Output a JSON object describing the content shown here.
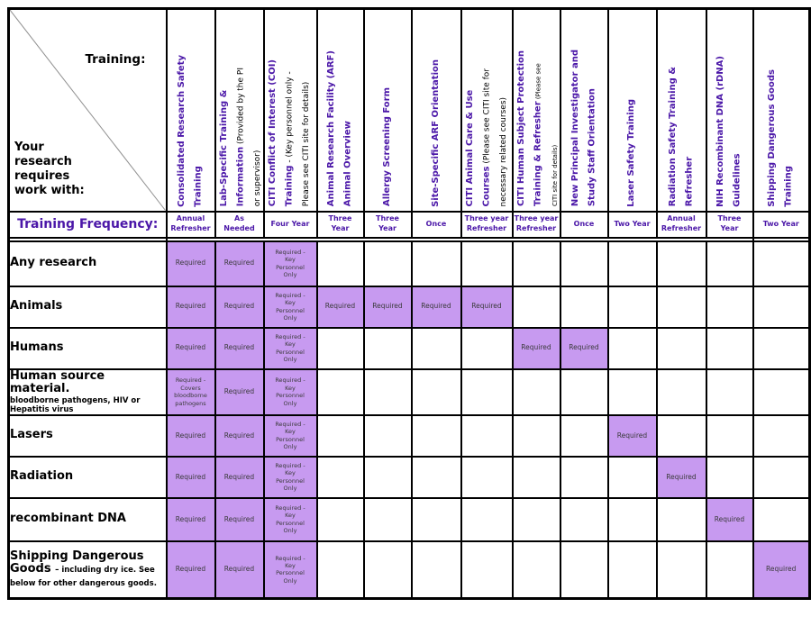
{
  "corner": {
    "training_label": "Training:",
    "your_research_label": "Your\nresearch\nrequires\nwork with:"
  },
  "frequency_label": "Training Frequency:",
  "columns": [
    {
      "title": "Consolidated Research Safety\nTraining",
      "note": "",
      "small": "",
      "frequency": "Annual\nRefresher"
    },
    {
      "title": "Lab-Specific Training &\nInformation",
      "note": " (Provided by the PI\nor supervisor)",
      "small": "",
      "frequency": "As\nNeeded"
    },
    {
      "title": "CITI Conflict of Interest (COI)\nTraining",
      "note": " - (Key personnel only -\nPlease see CITI site for details)",
      "small": "",
      "frequency": "Four Year"
    },
    {
      "title": "Animal Research Facility (ARF)\nAnimal Overview",
      "note": "",
      "small": "",
      "frequency": "Three\nYear"
    },
    {
      "title": "Allergy Screening Form",
      "note": "",
      "small": "",
      "frequency": "Three\nYear"
    },
    {
      "title": "Site-Specific ARF Orientation",
      "note": "",
      "small": "",
      "frequency": "Once"
    },
    {
      "title": "CITI Animal Care & Use\nCourses",
      "note": " (Please see CITI site for\nnecessary related courses)",
      "small": "",
      "frequency": "Three year\nRefresher"
    },
    {
      "title": "CITI Human Subject Protection\nTraining & Refresher",
      "note": "",
      "small": " (Please see\nCITI site for details)",
      "frequency": "Three year\nRefresher"
    },
    {
      "title": "New Principal Investigator and\nStudy Staff Orientation",
      "note": "",
      "small": "",
      "frequency": "Once"
    },
    {
      "title": "Laser Safety Training",
      "note": "",
      "small": "",
      "frequency": "Two Year"
    },
    {
      "title": "Radiation Safety Training &\nRefresher",
      "note": "",
      "small": "",
      "frequency": "Annual\nRefresher"
    },
    {
      "title": "NIH Recombinant DNA (rDNA)\nGuidelines",
      "note": "",
      "small": "",
      "frequency": "Three\nYear"
    },
    {
      "title": "Shipping Dangerous Goods\nTraining",
      "note": "",
      "small": "",
      "frequency": "Two Year"
    }
  ],
  "rows": [
    {
      "label": "Any research",
      "sublabel": "",
      "sublabel_display": "none",
      "cells": [
        "Required",
        "Required",
        "Required -\nKey\nPersonnel\nOnly",
        "",
        "",
        "",
        "",
        "",
        "",
        "",
        "",
        "",
        ""
      ]
    },
    {
      "label": "Animals",
      "sublabel": "",
      "sublabel_display": "none",
      "cells": [
        "Required",
        "Required",
        "Required -\nKey\nPersonnel\nOnly",
        "Required",
        "Required",
        "Required",
        "Required",
        "",
        "",
        "",
        "",
        "",
        ""
      ]
    },
    {
      "label": "Humans",
      "sublabel": "",
      "sublabel_display": "none",
      "cells": [
        "Required",
        "Required",
        "Required -\nKey\nPersonnel\nOnly",
        "",
        "",
        "",
        "",
        "Required",
        "Required",
        "",
        "",
        "",
        ""
      ]
    },
    {
      "label": "Human source material.",
      "sublabel": "bloodborne pathogens, HIV or\nHepatitis virus",
      "sublabel_display": "block",
      "cells": [
        "Required -\nCovers\nbloodborne\npathogens",
        "Required",
        "Required -\nKey\nPersonnel\nOnly",
        "",
        "",
        "",
        "",
        "",
        "",
        "",
        "",
        "",
        ""
      ]
    },
    {
      "label": "Lasers",
      "sublabel": "",
      "sublabel_display": "none",
      "cells": [
        "Required",
        "Required",
        "Required -\nKey\nPersonnel\nOnly",
        "",
        "",
        "",
        "",
        "",
        "",
        "Required",
        "",
        "",
        ""
      ]
    },
    {
      "label": "Radiation",
      "sublabel": "",
      "sublabel_display": "none",
      "cells": [
        "Required",
        "Required",
        "Required -\nKey\nPersonnel\nOnly",
        "",
        "",
        "",
        "",
        "",
        "",
        "",
        "Required",
        "",
        ""
      ]
    },
    {
      "label": "recombinant DNA",
      "sublabel": "",
      "sublabel_display": "none",
      "cells": [
        "Required",
        "Required",
        "Required -\nKey\nPersonnel\nOnly",
        "",
        "",
        "",
        "",
        "",
        "",
        "",
        "",
        "Required",
        ""
      ]
    },
    {
      "label": "Shipping Dangerous\nGoods",
      "sublabel": "– including dry ice. See\nbelow for other dangerous goods.",
      "sublabel_display": "inline",
      "cells": [
        "Required",
        "Required",
        "Required -\nKey\nPersonnel\nOnly",
        "",
        "",
        "",
        "",
        "",
        "",
        "",
        "",
        "",
        "Required"
      ]
    }
  ],
  "colors": {
    "header_text_purple": "#4b17a8",
    "required_cell_fill": "#c79af0",
    "cell_text": "#3a3a3a",
    "grid_line": "#000000"
  }
}
